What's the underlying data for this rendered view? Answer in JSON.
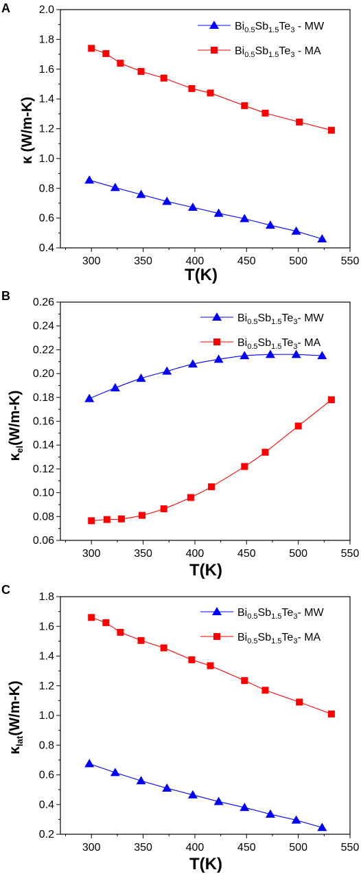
{
  "colors": {
    "mw": "#0000ff",
    "ma": "#ff0000",
    "axis": "#000000"
  },
  "chart_data": [
    {
      "panel": "A",
      "type": "line",
      "xlabel": "T(K)",
      "ylabel_main": "κ (W/m-K)",
      "ylabel_sub": "",
      "ylabel_rest": "",
      "xlim": [
        270,
        550
      ],
      "ylim": [
        0.4,
        2.0
      ],
      "xticks": [
        300,
        350,
        400,
        450,
        500,
        550
      ],
      "yticks": [
        0.4,
        0.6,
        0.8,
        1.0,
        1.2,
        1.4,
        1.6,
        1.8,
        2.0
      ],
      "ytick_decimals": 1,
      "legend_position": "top-right",
      "series": [
        {
          "key": "mw",
          "name_parts": [
            "Bi",
            "0.5",
            "Sb",
            "1.5",
            "Te",
            "3",
            " - MW"
          ],
          "marker": "triangle",
          "x": [
            298,
            323,
            348,
            373,
            398,
            423,
            448,
            473,
            498,
            523
          ],
          "y": [
            0.855,
            0.805,
            0.758,
            0.712,
            0.672,
            0.632,
            0.596,
            0.552,
            0.512,
            0.46
          ]
        },
        {
          "key": "ma",
          "name_parts": [
            "Bi",
            "0.5",
            "Sb",
            "1.5",
            "Te",
            "3",
            " - MA"
          ],
          "marker": "square",
          "x": [
            300,
            314,
            328,
            348,
            370,
            397,
            415,
            448,
            468,
            501,
            532
          ],
          "y": [
            1.74,
            1.705,
            1.64,
            1.585,
            1.54,
            1.47,
            1.44,
            1.355,
            1.305,
            1.245,
            1.19
          ]
        }
      ]
    },
    {
      "panel": "B",
      "type": "line",
      "xlabel": "T(K)",
      "ylabel_main": "κ",
      "ylabel_sub": "el",
      "ylabel_rest": "(W/m-K)",
      "xlim": [
        270,
        550
      ],
      "ylim": [
        0.06,
        0.26
      ],
      "xticks": [
        300,
        350,
        400,
        450,
        500,
        550
      ],
      "yticks": [
        0.06,
        0.08,
        0.1,
        0.12,
        0.14,
        0.16,
        0.18,
        0.2,
        0.22,
        0.24,
        0.26
      ],
      "ytick_decimals": 2,
      "legend_position": "top-right",
      "series": [
        {
          "key": "mw",
          "name_parts": [
            "Bi",
            "0.5",
            "Sb",
            "1.5",
            "Te",
            "3",
            "- MW"
          ],
          "marker": "triangle",
          "x": [
            298,
            323,
            348,
            373,
            398,
            423,
            448,
            473,
            498,
            523
          ],
          "y": [
            0.179,
            0.188,
            0.196,
            0.202,
            0.208,
            0.212,
            0.215,
            0.216,
            0.216,
            0.215
          ]
        },
        {
          "key": "ma",
          "name_parts": [
            "Bi",
            "0.5",
            "Sb",
            "1.5",
            "Te",
            "3",
            "- MA"
          ],
          "marker": "square",
          "x": [
            300,
            315,
            329,
            349,
            370,
            396,
            416,
            448,
            468,
            500,
            532
          ],
          "y": [
            0.0765,
            0.0775,
            0.078,
            0.081,
            0.0865,
            0.096,
            0.105,
            0.122,
            0.134,
            0.156,
            0.178
          ]
        }
      ]
    },
    {
      "panel": "C",
      "type": "line",
      "xlabel": "T(K)",
      "ylabel_main": "κ",
      "ylabel_sub": "lat",
      "ylabel_rest": "(W/m-K)",
      "xlim": [
        270,
        550
      ],
      "ylim": [
        0.2,
        1.8
      ],
      "xticks": [
        300,
        350,
        400,
        450,
        500,
        550
      ],
      "yticks": [
        0.2,
        0.4,
        0.6,
        0.8,
        1.0,
        1.2,
        1.4,
        1.6,
        1.8
      ],
      "ytick_decimals": 1,
      "legend_position": "top-right",
      "series": [
        {
          "key": "mw",
          "name_parts": [
            "Bi",
            "0.5",
            "Sb",
            "1.5",
            "Te",
            "3",
            "- MW"
          ],
          "marker": "triangle",
          "x": [
            298,
            323,
            348,
            373,
            398,
            423,
            448,
            473,
            498,
            523
          ],
          "y": [
            0.675,
            0.615,
            0.56,
            0.51,
            0.465,
            0.42,
            0.38,
            0.335,
            0.295,
            0.245
          ]
        },
        {
          "key": "ma",
          "name_parts": [
            "Bi",
            "0.5",
            "Sb",
            "1.5",
            "Te",
            "3",
            "- MA"
          ],
          "marker": "square",
          "x": [
            300,
            314,
            328,
            348,
            370,
            397,
            415,
            448,
            468,
            501,
            532
          ],
          "y": [
            1.66,
            1.625,
            1.56,
            1.505,
            1.455,
            1.375,
            1.335,
            1.235,
            1.17,
            1.09,
            1.01
          ]
        }
      ]
    }
  ]
}
